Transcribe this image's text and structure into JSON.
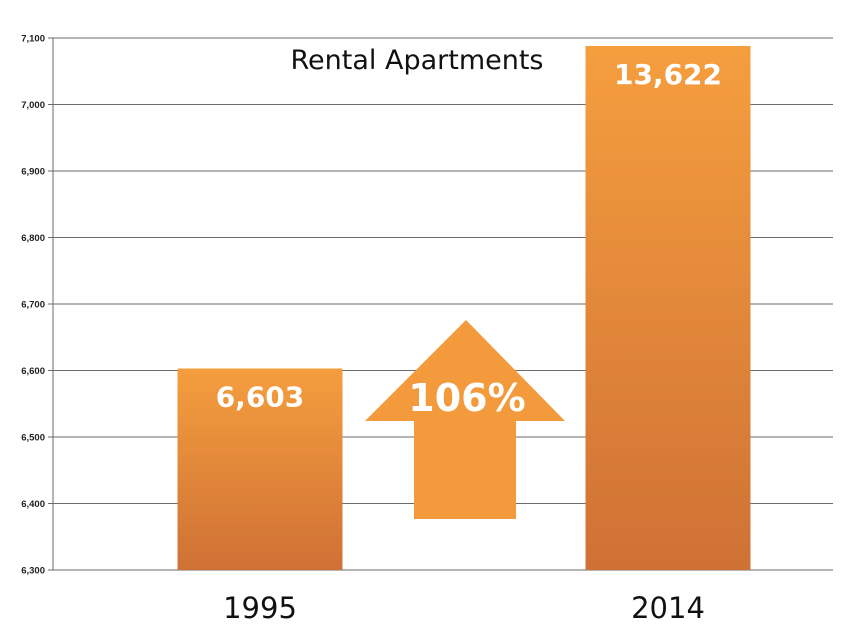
{
  "chart_data": {
    "type": "bar",
    "title": "Rental Apartments",
    "xlabel": "",
    "ylabel": "",
    "categories": [
      "1995",
      "2014"
    ],
    "values": [
      6603,
      13622
    ],
    "data_labels": [
      "6,603",
      "13,622"
    ],
    "ylim": [
      6300,
      7100
    ],
    "yticks": [
      6300,
      6400,
      6500,
      6600,
      6700,
      6800,
      6900,
      7000,
      7100
    ],
    "ytick_labels": [
      "6,300",
      "6,400",
      "6,500",
      "6,600",
      "6,700",
      "6,800",
      "6,900",
      "7,000",
      "7,100"
    ],
    "grid": true,
    "legend": "none",
    "annotation": {
      "text": "106%",
      "shape": "up-arrow",
      "color": "#f29a3c"
    },
    "bar_color_top": "#f59e3e",
    "bar_color_bottom": "#cf7135"
  }
}
